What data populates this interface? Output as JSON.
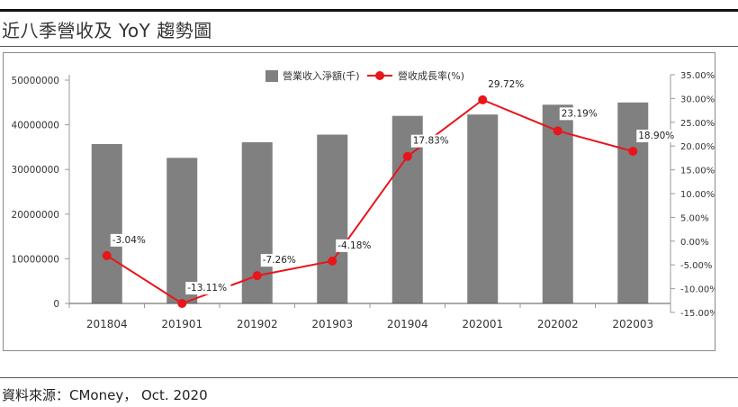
{
  "page": {
    "title": "近八季營收及 YoY 趨勢圖",
    "source": "資料來源：CMoney， Oct. 2020"
  },
  "colors": {
    "bar": "#808080",
    "line": "#e8151b",
    "axis": "#9a9a9a"
  },
  "chart_data": {
    "type": "bar",
    "categories": [
      "201804",
      "201901",
      "201902",
      "201903",
      "201904",
      "202001",
      "202002",
      "202003"
    ],
    "series": [
      {
        "name": "營業收入淨額(千)",
        "type": "bar",
        "axis": "left",
        "values": [
          35700000,
          32600000,
          36100000,
          37800000,
          42000000,
          42300000,
          44500000,
          45000000
        ]
      },
      {
        "name": "營收成長率(%)",
        "type": "line",
        "axis": "right",
        "values": [
          -3.04,
          -13.11,
          -7.26,
          -4.18,
          17.83,
          29.72,
          23.19,
          18.9
        ],
        "labels": [
          "-3.04%",
          "-13.11%",
          "-7.26%",
          "-4.18%",
          "17.83%",
          "29.72%",
          "23.19%",
          "18.90%"
        ]
      }
    ],
    "left_axis": {
      "ticks": [
        0,
        10000000,
        20000000,
        30000000,
        40000000,
        50000000
      ],
      "tick_labels": [
        "0",
        "10000000",
        "20000000",
        "30000000",
        "40000000",
        "50000000"
      ]
    },
    "right_axis": {
      "ticks": [
        -15,
        -10,
        -5,
        0,
        5,
        10,
        15,
        20,
        25,
        30,
        35
      ],
      "tick_labels": [
        "-15.00%",
        "-10.00%",
        "-5.00%",
        "0.00%",
        "5.00%",
        "10.00%",
        "15.00%",
        "20.00%",
        "25.00%",
        "30.00%",
        "35.00%"
      ]
    },
    "legend_position": "top-center",
    "grid": false
  }
}
